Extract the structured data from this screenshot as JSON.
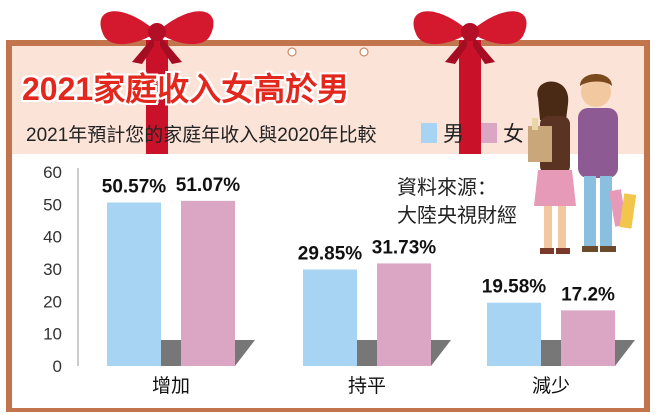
{
  "title": "2021家庭收入女高於男",
  "subtitle": "2021年預計您的家庭年收入與2020年比較",
  "legend": [
    {
      "name": "男",
      "color": "#a8d4f4"
    },
    {
      "name": "女",
      "color": "#dba5c4"
    }
  ],
  "source": {
    "line1": "資料來源：",
    "line2": "大陸央視財經"
  },
  "chart_data": {
    "type": "bar",
    "categories": [
      "增加",
      "持平",
      "減少"
    ],
    "series": [
      {
        "name": "男",
        "values": [
          50.57,
          29.85,
          19.58
        ],
        "labels": [
          "50.57%",
          "29.85%",
          "19.58%"
        ],
        "color": "#a8d4f4"
      },
      {
        "name": "女",
        "values": [
          51.07,
          31.73,
          17.2
        ],
        "labels": [
          "51.07%",
          "31.73%",
          "17.2%"
        ],
        "color": "#dba5c4"
      }
    ],
    "yticks": [
      "0",
      "10",
      "20",
      "30",
      "40",
      "50",
      "60"
    ],
    "ylim": [
      0,
      60
    ],
    "grid": false,
    "legend_position": "top"
  }
}
